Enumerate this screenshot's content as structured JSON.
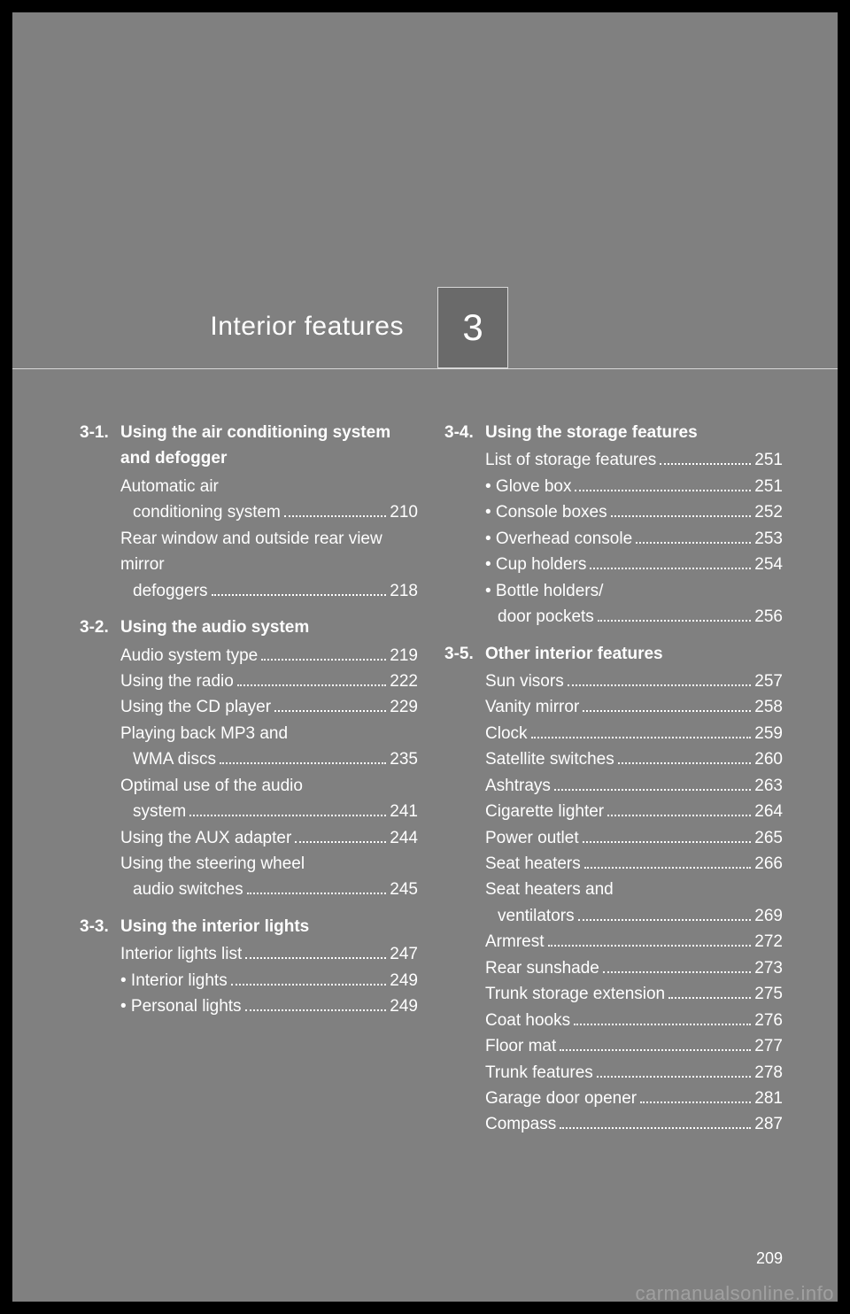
{
  "chapter": {
    "number": "3",
    "title": "Interior features"
  },
  "pageNumber": "209",
  "watermark": "carmanualsonline.info",
  "left": [
    {
      "num": "3-1.",
      "title": "Using the air conditioning system and defogger",
      "items": [
        {
          "pre": "Automatic air",
          "label": "conditioning system",
          "page": "210"
        },
        {
          "pre": "Rear window and outside rear view mirror",
          "label": "defoggers",
          "page": "218"
        }
      ]
    },
    {
      "num": "3-2.",
      "title": "Using the audio system",
      "items": [
        {
          "label": "Audio system type",
          "page": "219"
        },
        {
          "label": "Using the radio",
          "page": "222"
        },
        {
          "label": "Using the CD player",
          "page": "229"
        },
        {
          "pre": "Playing back MP3 and",
          "label": "WMA discs",
          "page": "235"
        },
        {
          "pre": "Optimal use of the audio",
          "label": "system",
          "page": "241"
        },
        {
          "label": "Using the AUX adapter",
          "page": "244"
        },
        {
          "pre": "Using the steering wheel",
          "label": "audio switches",
          "page": "245"
        }
      ]
    },
    {
      "num": "3-3.",
      "title": "Using the interior lights",
      "items": [
        {
          "label": "Interior lights list",
          "page": "247"
        },
        {
          "label": "• Interior lights",
          "page": "249"
        },
        {
          "label": "• Personal lights",
          "page": "249"
        }
      ]
    }
  ],
  "right": [
    {
      "num": "3-4.",
      "title": "Using the storage features",
      "items": [
        {
          "label": "List of storage features",
          "page": "251"
        },
        {
          "label": "• Glove box",
          "page": "251"
        },
        {
          "label": "• Console boxes",
          "page": "252"
        },
        {
          "label": "• Overhead console",
          "page": "253"
        },
        {
          "label": "• Cup holders",
          "page": "254"
        },
        {
          "pre": "•  Bottle holders/",
          "label": "door pockets",
          "page": "256"
        }
      ]
    },
    {
      "num": "3-5.",
      "title": "Other interior features",
      "items": [
        {
          "label": "Sun visors",
          "page": "257"
        },
        {
          "label": "Vanity mirror",
          "page": "258"
        },
        {
          "label": "Clock",
          "page": "259"
        },
        {
          "label": "Satellite switches",
          "page": "260"
        },
        {
          "label": "Ashtrays",
          "page": "263"
        },
        {
          "label": "Cigarette lighter",
          "page": "264"
        },
        {
          "label": "Power outlet",
          "page": "265"
        },
        {
          "label": "Seat heaters",
          "page": "266"
        },
        {
          "pre": "Seat heaters and",
          "label": "ventilators",
          "page": "269"
        },
        {
          "label": "Armrest",
          "page": "272"
        },
        {
          "label": "Rear sunshade",
          "page": "273"
        },
        {
          "label": "Trunk storage extension",
          "page": "275"
        },
        {
          "label": "Coat hooks",
          "page": "276"
        },
        {
          "label": "Floor mat",
          "page": "277"
        },
        {
          "label": "Trunk features",
          "page": "278"
        },
        {
          "label": "Garage door opener",
          "page": "281"
        },
        {
          "label": "Compass",
          "page": "287"
        }
      ]
    }
  ]
}
